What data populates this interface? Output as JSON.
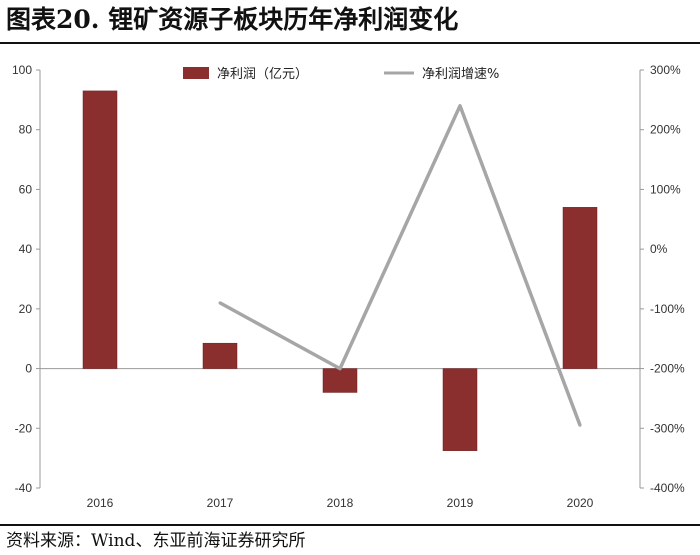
{
  "page": {
    "title": "图表20. 锂矿资源子板块历年净利润变化",
    "source": "资料来源：Wind、东亚前海证券研究所"
  },
  "chart_data": {
    "type": "bar+line",
    "categories": [
      "2016",
      "2017",
      "2018",
      "2019",
      "2020"
    ],
    "series": [
      {
        "name": "净利润（亿元）",
        "type": "bar",
        "axis": "left",
        "color": "#8B2E2E",
        "values": [
          93,
          8.5,
          -8,
          -27.5,
          54
        ]
      },
      {
        "name": "净利润增速%",
        "type": "line",
        "axis": "right",
        "color": "#A6A6A6",
        "values": [
          null,
          -90,
          -200,
          240,
          -295
        ]
      }
    ],
    "y_left": {
      "min": -40,
      "max": 100,
      "step": 20,
      "ticks": [
        "100",
        "80",
        "60",
        "40",
        "20",
        "0",
        "-20",
        "-40"
      ]
    },
    "y_right": {
      "min": -400,
      "max": 300,
      "step": 100,
      "ticks": [
        "300%",
        "200%",
        "100%",
        "0%",
        "-100%",
        "-200%",
        "-300%",
        "-400%"
      ]
    },
    "legend": "top-center",
    "grid": false
  }
}
